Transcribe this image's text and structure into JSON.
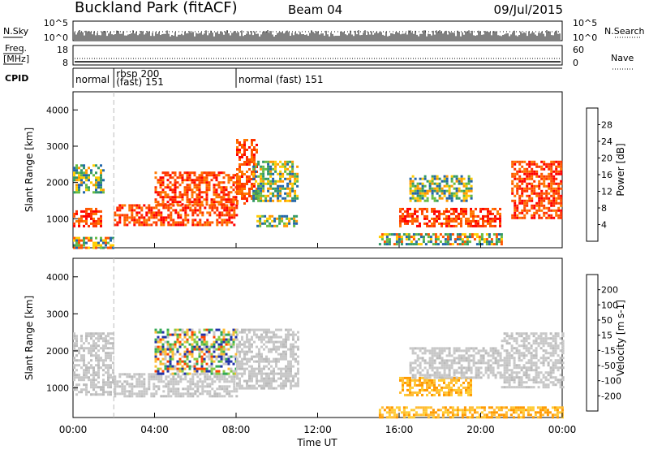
{
  "header": {
    "station": "Buckland Park (fitACF)",
    "beam": "Beam 04",
    "date": "09/Jul/2015"
  },
  "side_labels": {
    "nsky": "N.Sky",
    "nsearch": "N.Search",
    "freq_line1": "Freq.",
    "freq_line2": "[MHz]",
    "nave": "Nave",
    "cpid": "CPID"
  },
  "noise_panel": {
    "left_ticks": [
      "10^5",
      "10^0"
    ],
    "right_ticks": [
      "10^5",
      "10^0"
    ]
  },
  "freq_panel": {
    "left_ticks": [
      "18",
      "8"
    ],
    "right_ticks": [
      "60",
      "0"
    ]
  },
  "cpid_segments": [
    {
      "label": "normal",
      "start_hour": 0.0,
      "end_hour": 2.0
    },
    {
      "label": "rbsp 200 (fast) 151",
      "start_hour": 2.0,
      "end_hour": 8.0
    },
    {
      "label": "normal (fast) 151",
      "start_hour": 8.0,
      "end_hour": 24.0
    }
  ],
  "chart_data": [
    {
      "type": "heatmap",
      "panel": "power",
      "ylabel": "Slant Range [km]",
      "xlabel": "",
      "xlim_hours": [
        0,
        24
      ],
      "ylim_km": [
        200,
        4500
      ],
      "yticks": [
        "1000",
        "2000",
        "3000",
        "4000"
      ],
      "colorbar": {
        "label": "Power [dB]",
        "ticks": [
          "28",
          "24",
          "20",
          "16",
          "12",
          "8",
          "4"
        ],
        "colors": [
          "#ff0000",
          "#ff5500",
          "#ff9900",
          "#ffcc00",
          "#66bb44",
          "#339966",
          "#2266aa",
          "#0000ff"
        ]
      },
      "echo_regions": [
        {
          "t": [
            0.0,
            1.4
          ],
          "r": [
            800,
            1300
          ],
          "level": "high"
        },
        {
          "t": [
            0.0,
            1.5
          ],
          "r": [
            1700,
            2500
          ],
          "level": "medium"
        },
        {
          "t": [
            0.0,
            2.0
          ],
          "r": [
            200,
            500
          ],
          "level": "mixed"
        },
        {
          "t": [
            2.0,
            8.0
          ],
          "r": [
            800,
            1400
          ],
          "level": "high"
        },
        {
          "t": [
            4.0,
            8.0
          ],
          "r": [
            1400,
            2300
          ],
          "level": "high"
        },
        {
          "t": [
            8.0,
            9.0
          ],
          "r": [
            1400,
            3200
          ],
          "level": "high"
        },
        {
          "t": [
            8.8,
            11.0
          ],
          "r": [
            1500,
            2600
          ],
          "level": "medium"
        },
        {
          "t": [
            9.0,
            11.0
          ],
          "r": [
            800,
            1100
          ],
          "level": "medium"
        },
        {
          "t": [
            15.0,
            21.0
          ],
          "r": [
            300,
            600
          ],
          "level": "mixed"
        },
        {
          "t": [
            16.0,
            21.0
          ],
          "r": [
            800,
            1300
          ],
          "level": "high"
        },
        {
          "t": [
            16.5,
            19.5
          ],
          "r": [
            1500,
            2200
          ],
          "level": "medium"
        },
        {
          "t": [
            21.5,
            24.0
          ],
          "r": [
            1000,
            2600
          ],
          "level": "high"
        }
      ]
    },
    {
      "type": "heatmap",
      "panel": "velocity",
      "ylabel": "Slant Range [km]",
      "xlabel": "Time UT",
      "xlim_hours": [
        0,
        24
      ],
      "ylim_km": [
        200,
        4500
      ],
      "xticks": [
        "00:00",
        "04:00",
        "08:00",
        "12:00",
        "16:00",
        "20:00",
        "00:00"
      ],
      "yticks": [
        "1000",
        "2000",
        "3000",
        "4000"
      ],
      "colorbar": {
        "label": "Velocity [m s-1]",
        "ticks": [
          "200",
          "100",
          "50",
          "15",
          "-15",
          "-50",
          "-100",
          "-200"
        ],
        "colors": [
          "#2233aa",
          "#3377bb",
          "#33aa55",
          "#88cc44",
          "#c8c8c8",
          "#ffbb33",
          "#ff8800",
          "#ff4400",
          "#ff0000"
        ]
      },
      "echo_regions": [
        {
          "t": [
            0.0,
            2.0
          ],
          "r": [
            800,
            2500
          ],
          "level": "ground"
        },
        {
          "t": [
            2.0,
            8.0
          ],
          "r": [
            800,
            1400
          ],
          "level": "ground"
        },
        {
          "t": [
            4.0,
            8.0
          ],
          "r": [
            1400,
            2600
          ],
          "level": "mixed"
        },
        {
          "t": [
            8.0,
            11.0
          ],
          "r": [
            1000,
            2600
          ],
          "level": "ground"
        },
        {
          "t": [
            16.0,
            19.5
          ],
          "r": [
            800,
            1300
          ],
          "level": "negative"
        },
        {
          "t": [
            16.5,
            21.0
          ],
          "r": [
            1300,
            2100
          ],
          "level": "ground"
        },
        {
          "t": [
            21.0,
            24.0
          ],
          "r": [
            1000,
            2500
          ],
          "level": "ground"
        },
        {
          "t": [
            15.0,
            24.0
          ],
          "r": [
            200,
            500
          ],
          "level": "negative"
        }
      ]
    }
  ]
}
